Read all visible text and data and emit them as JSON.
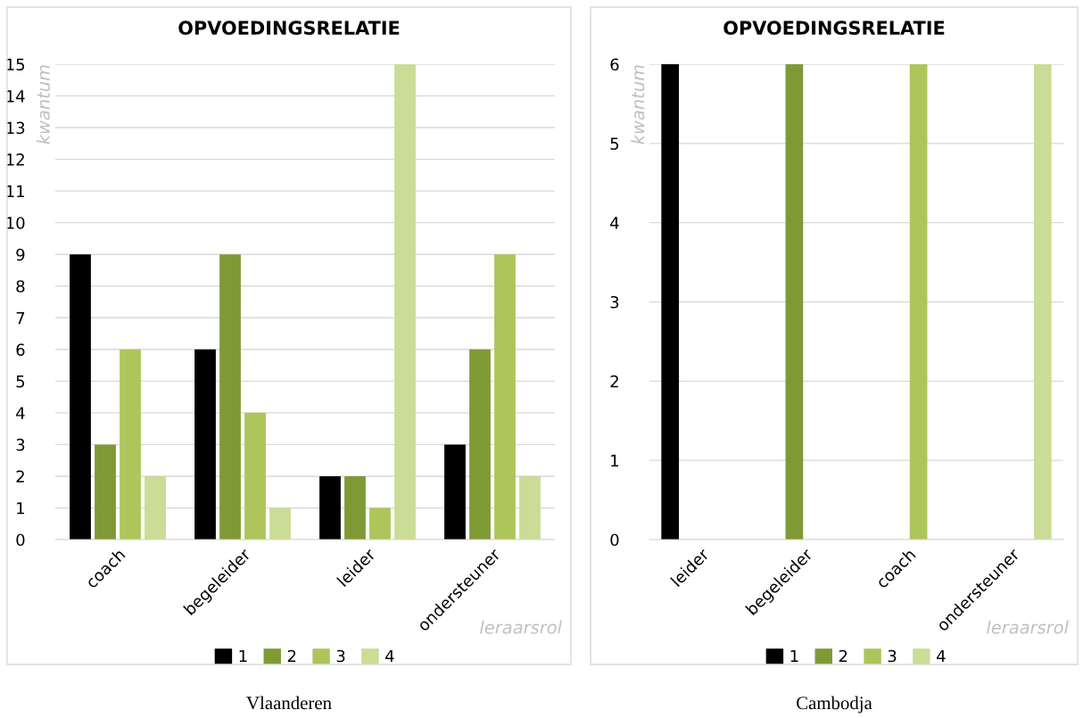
{
  "chart_data": [
    {
      "type": "bar",
      "title": "OPVOEDINGSRELATIE",
      "xlabel": "leraarsrol",
      "ylabel": "kwantum",
      "categories": [
        "coach",
        "begeleider",
        "leider",
        "ondersteuner"
      ],
      "series": [
        {
          "name": "1",
          "color": "#000000",
          "values": [
            9,
            6,
            2,
            3
          ]
        },
        {
          "name": "2",
          "color": "#7f9a35",
          "values": [
            3,
            9,
            2,
            6
          ]
        },
        {
          "name": "3",
          "color": "#adc55a",
          "values": [
            6,
            4,
            1,
            9
          ]
        },
        {
          "name": "4",
          "color": "#cadc95",
          "values": [
            2,
            1,
            15,
            2
          ]
        }
      ],
      "ylim": [
        0,
        15
      ],
      "yticks": [
        0,
        1,
        2,
        3,
        4,
        5,
        6,
        7,
        8,
        9,
        10,
        11,
        12,
        13,
        14,
        15
      ],
      "grid": "y",
      "legend": "bottom",
      "annotations": [
        "Vlaanderen"
      ]
    },
    {
      "type": "bar",
      "title": "OPVOEDINGSRELATIE",
      "xlabel": "leraarsrol",
      "ylabel": "kwantum",
      "categories": [
        "leider",
        "begeleider",
        "coach",
        "ondersteuner"
      ],
      "series": [
        {
          "name": "1",
          "color": "#000000",
          "values": [
            6,
            0,
            0,
            0
          ]
        },
        {
          "name": "2",
          "color": "#7f9a35",
          "values": [
            0,
            6,
            0,
            0
          ]
        },
        {
          "name": "3",
          "color": "#adc55a",
          "values": [
            0,
            0,
            6,
            0
          ]
        },
        {
          "name": "4",
          "color": "#cadc95",
          "values": [
            0,
            0,
            0,
            6
          ]
        }
      ],
      "ylim": [
        0,
        6
      ],
      "yticks": [
        0,
        1,
        2,
        3,
        4,
        5,
        6
      ],
      "grid": "y",
      "legend": "bottom",
      "annotations": [
        "Cambodja"
      ]
    }
  ]
}
